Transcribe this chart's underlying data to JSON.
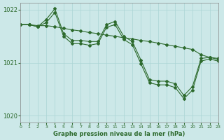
{
  "background_color": "#cce8e8",
  "line_color": "#2d6a2d",
  "grid_color": "#aad4d4",
  "title": "Graphe pression niveau de la mer (hPa)",
  "xlim": [
    0,
    23
  ],
  "ylim": [
    1019.87,
    1022.13
  ],
  "yticks": [
    1020,
    1021,
    1022
  ],
  "xticks": [
    0,
    1,
    2,
    3,
    4,
    5,
    6,
    7,
    8,
    9,
    10,
    11,
    12,
    13,
    14,
    15,
    16,
    17,
    18,
    19,
    20,
    21,
    22,
    23
  ],
  "series1": [
    1021.72,
    1021.72,
    1021.7,
    1021.7,
    1021.68,
    1021.65,
    1021.62,
    1021.6,
    1021.57,
    1021.55,
    1021.52,
    1021.5,
    1021.47,
    1021.45,
    1021.42,
    1021.4,
    1021.37,
    1021.34,
    1021.31,
    1021.28,
    1021.25,
    1021.15,
    1021.1,
    1021.08
  ],
  "series2": [
    1021.72,
    1021.72,
    1021.68,
    1021.82,
    1022.02,
    1021.55,
    1021.42,
    1021.42,
    1021.4,
    1021.4,
    1021.72,
    1021.78,
    1021.5,
    1021.4,
    1021.05,
    1020.68,
    1020.65,
    1020.65,
    1020.6,
    1020.38,
    1020.55,
    1021.08,
    1021.1,
    1021.06
  ],
  "series3": [
    1021.72,
    1021.72,
    1021.68,
    1021.76,
    1021.95,
    1021.5,
    1021.36,
    1021.36,
    1021.33,
    1021.36,
    1021.67,
    1021.72,
    1021.44,
    1021.34,
    1020.98,
    1020.62,
    1020.58,
    1020.58,
    1020.53,
    1020.32,
    1020.48,
    1021.03,
    1021.07,
    1021.03
  ]
}
